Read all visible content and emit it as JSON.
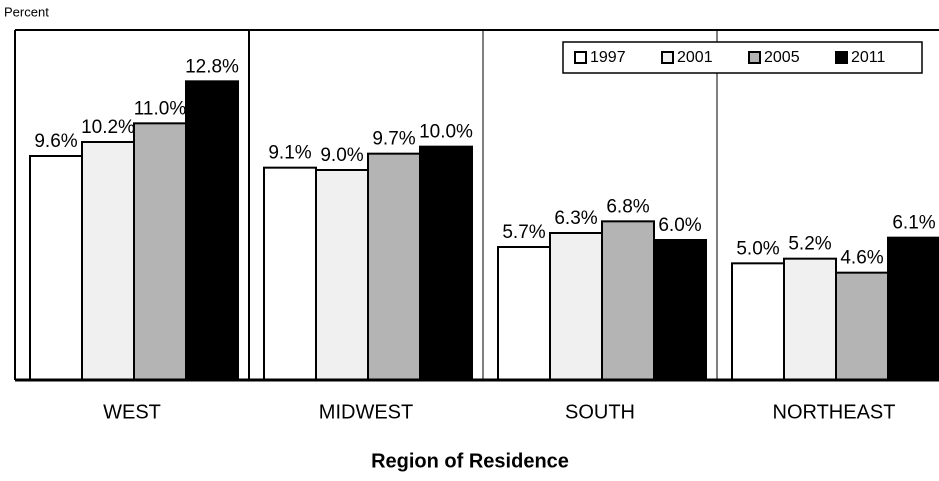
{
  "chart_data": {
    "type": "bar",
    "y_label": "Percent",
    "x_label": "Region of Residence",
    "categories": [
      "WEST",
      "MIDWEST",
      "SOUTH",
      "NORTHEAST"
    ],
    "series": [
      {
        "name": "1997",
        "color": "#ffffff",
        "values": [
          9.6,
          9.1,
          5.7,
          5.0
        ],
        "value_labels": [
          "9.6%",
          "9.1%",
          "5.7%",
          "5.0%"
        ]
      },
      {
        "name": "2001",
        "color": "#f0f0f0",
        "values": [
          10.2,
          9.0,
          6.3,
          5.2
        ],
        "value_labels": [
          "10.2%",
          "9.0%",
          "6.3%",
          "5.2%"
        ]
      },
      {
        "name": "2005",
        "color": "#b4b4b4",
        "values": [
          11.0,
          9.7,
          6.8,
          4.6
        ],
        "value_labels": [
          "11.0%",
          "9.7%",
          "6.8%",
          "4.6%"
        ]
      },
      {
        "name": "2011",
        "color": "#000000",
        "values": [
          12.8,
          10.0,
          6.0,
          6.1
        ],
        "value_labels": [
          "12.8%",
          "10.0%",
          "6.0%",
          "6.1%"
        ]
      }
    ],
    "ylim": [
      0,
      15
    ],
    "legend": "upper right"
  }
}
